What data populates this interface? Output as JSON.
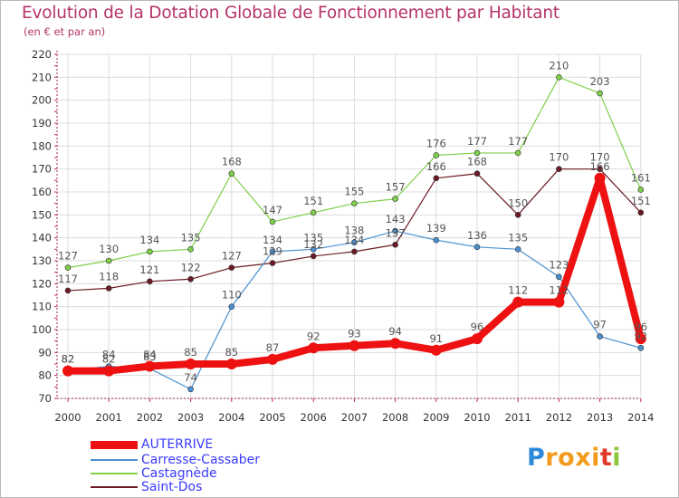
{
  "chart_data": {
    "type": "line",
    "title": "Evolution de la Dotation Globale de Fonctionnement par Habitant",
    "subtitle": "(en € et par an)",
    "xlabel": "",
    "ylabel": "",
    "ylim": [
      70,
      220
    ],
    "yticks": [
      70,
      80,
      90,
      100,
      110,
      120,
      130,
      140,
      150,
      160,
      170,
      180,
      190,
      200,
      210,
      220
    ],
    "categories": [
      "2000",
      "2001",
      "2002",
      "2003",
      "2004",
      "2005",
      "2006",
      "2007",
      "2008",
      "2009",
      "2010",
      "2011",
      "2012",
      "2013",
      "2014"
    ],
    "grid": true,
    "legend_position": "bottom-left",
    "series": [
      {
        "name": "Castagnède",
        "color": "#7fcf4a",
        "values": [
          127,
          130,
          134,
          135,
          168,
          147,
          151,
          155,
          157,
          176,
          177,
          177,
          210,
          203,
          161
        ]
      },
      {
        "name": "Saint-Dos",
        "color": "#6b1a24",
        "values": [
          117,
          118,
          121,
          122,
          127,
          129,
          132,
          134,
          137,
          166,
          168,
          150,
          170,
          170,
          151
        ]
      },
      {
        "name": "Carresse-Cassaber",
        "color": "#4a90d0",
        "values": [
          82,
          84,
          83,
          74,
          110,
          134,
          135,
          138,
          143,
          139,
          136,
          135,
          123,
          97,
          92
        ]
      },
      {
        "name": "AUTERRIVE",
        "color": "#ee1111",
        "values": [
          82,
          82,
          84,
          85,
          85,
          87,
          92,
          93,
          94,
          91,
          96,
          112,
          112,
          166,
          96
        ]
      }
    ]
  },
  "legend": [
    {
      "label": "AUTERRIVE",
      "color": "#ee1111",
      "text_color": "#3a3aff"
    },
    {
      "label": "Carresse-Cassaber",
      "color": "#4a90d0",
      "text_color": "#3a3aff"
    },
    {
      "label": "Castagnède",
      "color": "#7fcf4a",
      "text_color": "#3a3aff"
    },
    {
      "label": "Saint-Dos",
      "color": "#6b1a24",
      "text_color": "#3a3aff"
    }
  ],
  "logo": {
    "letters": [
      "P",
      "r",
      "o",
      "x",
      "i",
      "t",
      "i"
    ],
    "colors": [
      "#2e8ad8",
      "#f29a1c",
      "#f29a1c",
      "#f29a1c",
      "#f29a1c",
      "#e23a2a",
      "#8cc63f"
    ]
  }
}
